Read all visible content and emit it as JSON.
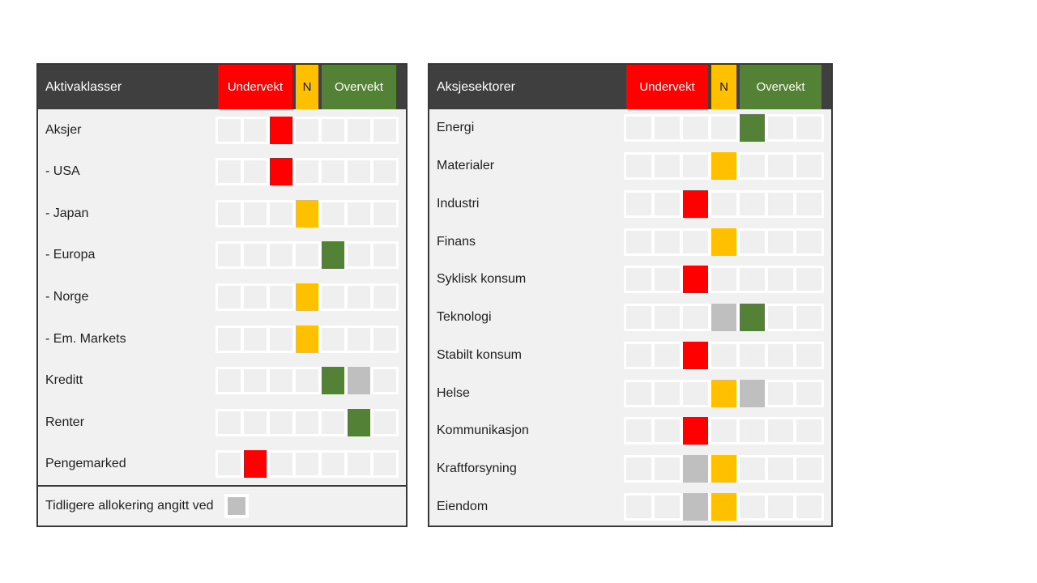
{
  "colors": {
    "header_bg": "#3F3F3F",
    "border": "#383838",
    "body_bg": "#F1F1F1",
    "cell_bg": "#EFEFEF",
    "red": "#FF0000",
    "yellow": "#FFC000",
    "green": "#538135",
    "gray": "#BFBFBF"
  },
  "chart_data": [
    {
      "type": "heatmap",
      "title": "Aktivaklasser",
      "scale": {
        "cells": 7,
        "under_label": "Undervekt",
        "neutral_label": "N",
        "over_label": "Overvekt",
        "under_span": [
          1,
          3
        ],
        "neutral_span": [
          4,
          4
        ],
        "over_span": [
          5,
          7
        ]
      },
      "rows": [
        {
          "label": "Aksjer",
          "current": 3,
          "current_color": "red",
          "previous": null
        },
        {
          "label": "- USA",
          "current": 3,
          "current_color": "red",
          "previous": null
        },
        {
          "label": "- Japan",
          "current": 4,
          "current_color": "yellow",
          "previous": null
        },
        {
          "label": "- Europa",
          "current": 5,
          "current_color": "green",
          "previous": null
        },
        {
          "label": "- Norge",
          "current": 4,
          "current_color": "yellow",
          "previous": null
        },
        {
          "label": "- Em. Markets",
          "current": 4,
          "current_color": "yellow",
          "previous": null
        },
        {
          "label": "Kreditt",
          "current": 5,
          "current_color": "green",
          "previous": 6
        },
        {
          "label": "Renter",
          "current": 6,
          "current_color": "green",
          "previous": null
        },
        {
          "label": "Pengemarked",
          "current": 2,
          "current_color": "red",
          "previous": null
        }
      ],
      "footer": "Tidligere allokering angitt ved"
    },
    {
      "type": "heatmap",
      "title": "Aksjesektorer",
      "scale": {
        "cells": 7,
        "under_label": "Undervekt",
        "neutral_label": "N",
        "over_label": "Overvekt",
        "under_span": [
          1,
          3
        ],
        "neutral_span": [
          4,
          4
        ],
        "over_span": [
          5,
          7
        ]
      },
      "rows": [
        {
          "label": "Energi",
          "current": 5,
          "current_color": "green",
          "previous": null
        },
        {
          "label": "Materialer",
          "current": 4,
          "current_color": "yellow",
          "previous": null
        },
        {
          "label": "Industri",
          "current": 3,
          "current_color": "red",
          "previous": null
        },
        {
          "label": "Finans",
          "current": 4,
          "current_color": "yellow",
          "previous": null
        },
        {
          "label": "Syklisk konsum",
          "current": 3,
          "current_color": "red",
          "previous": null
        },
        {
          "label": "Teknologi",
          "current": 5,
          "current_color": "green",
          "previous": 4
        },
        {
          "label": "Stabilt konsum",
          "current": 3,
          "current_color": "red",
          "previous": null
        },
        {
          "label": "Helse",
          "current": 4,
          "current_color": "yellow",
          "previous": 5
        },
        {
          "label": "Kommunikasjon",
          "current": 3,
          "current_color": "red",
          "previous": null
        },
        {
          "label": "Kraftforsyning",
          "current": 4,
          "current_color": "yellow",
          "previous": 3
        },
        {
          "label": "Eiendom",
          "current": 4,
          "current_color": "yellow",
          "previous": 3
        }
      ],
      "footer": null
    }
  ]
}
